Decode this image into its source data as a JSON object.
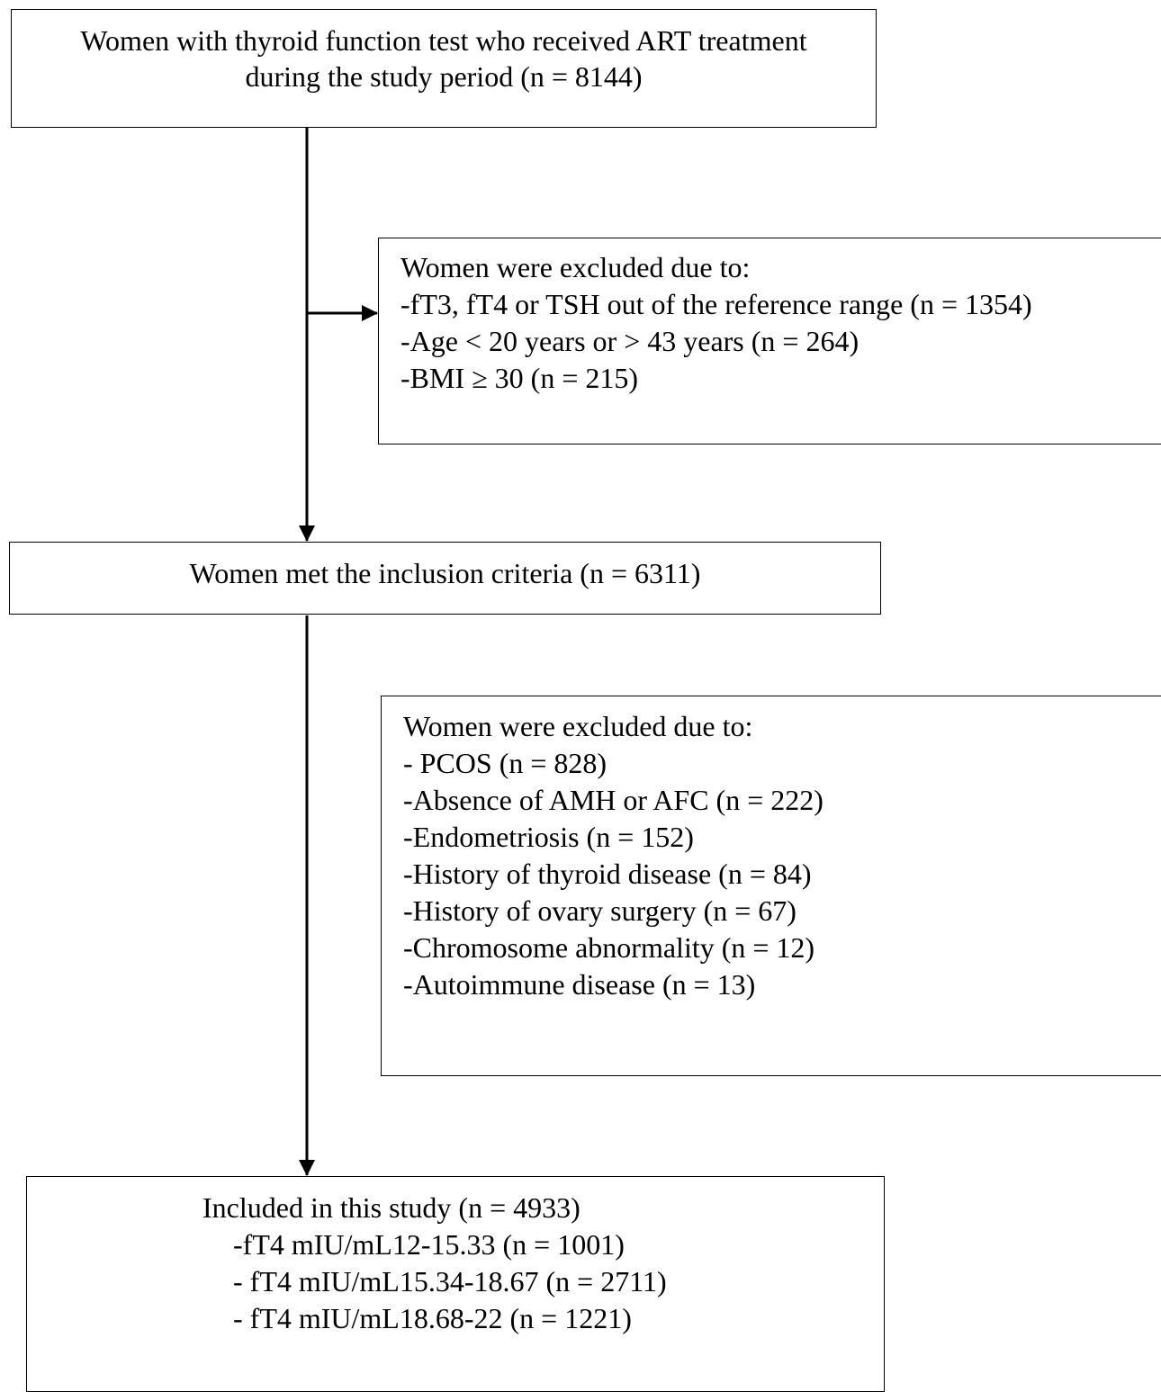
{
  "diagram": {
    "start_box": {
      "lines": [
        "Women with thyroid function test who received ART treatment",
        "during the study period (n = 8144)"
      ]
    },
    "exclusion_box_1": {
      "lines": [
        "Women were excluded due to:",
        "-fT3, fT4 or TSH out of the reference range (n = 1354)",
        "-Age < 20 years or > 43 years (n = 264)",
        "-BMI ≥ 30 (n = 215)"
      ]
    },
    "inclusion_box": {
      "text": "Women met the inclusion criteria (n = 6311)"
    },
    "exclusion_box_2": {
      "lines": [
        "Women were excluded due to:",
        "- PCOS (n = 828)",
        "-Absence of AMH or AFC (n = 222)",
        "-Endometriosis (n = 152)",
        "-History of thyroid disease (n = 84)",
        "-History of ovary surgery (n = 67)",
        "-Chromosome abnormality (n = 12)",
        "-Autoimmune disease (n = 13)"
      ]
    },
    "included_box": {
      "lines": [
        "Included in this study (n = 4933)",
        "-fT4 mIU/mL12-15.33 (n = 1001)",
        "- fT4 mIU/mL15.34-18.67 (n = 2711)",
        "- fT4 mIU/mL18.68-22 (n = 1221)"
      ]
    }
  }
}
